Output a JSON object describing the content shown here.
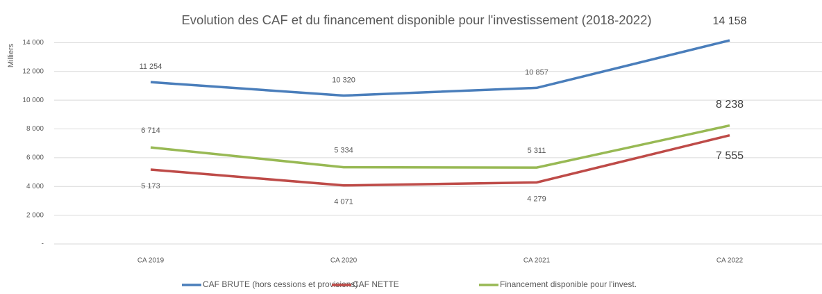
{
  "chart_data": {
    "type": "line",
    "title": "Evolution des CAF et du financement disponible pour l'investissement (2018-2022)",
    "y_label": "Milliers",
    "categories": [
      "CA 2019",
      "CA 2020",
      "CA 2021",
      "CA 2022"
    ],
    "series": [
      {
        "name": "CAF BRUTE (hors cessions et provisions)",
        "color": "#4a7ebb",
        "values": [
          11254,
          10320,
          10857,
          14158
        ],
        "value_labels": [
          "11 254",
          "10 320",
          "10 857",
          "14 158"
        ]
      },
      {
        "name": "CAF NETTE",
        "color": "#be4b48",
        "values": [
          5173,
          4071,
          4279,
          7555
        ],
        "value_labels": [
          "5 173",
          "4 071",
          "4 279",
          "7 555"
        ]
      },
      {
        "name": "Financement disponible pour l'invest.",
        "color": "#98b954",
        "values": [
          6714,
          5334,
          5311,
          8238
        ],
        "value_labels": [
          "6 714",
          "5 334",
          "5 311",
          "8 238"
        ]
      }
    ],
    "ylim": [
      0,
      16000
    ],
    "yticks": [
      {
        "value": 0,
        "label": "-"
      },
      {
        "value": 2000,
        "label": "2 000"
      },
      {
        "value": 4000,
        "label": "4 000"
      },
      {
        "value": 6000,
        "label": "6 000"
      },
      {
        "value": 8000,
        "label": "8 000"
      },
      {
        "value": 10000,
        "label": "10 000"
      },
      {
        "value": 12000,
        "label": "12 000"
      },
      {
        "value": 14000,
        "label": "14 000"
      }
    ],
    "grid": true,
    "legend": "bottom"
  }
}
